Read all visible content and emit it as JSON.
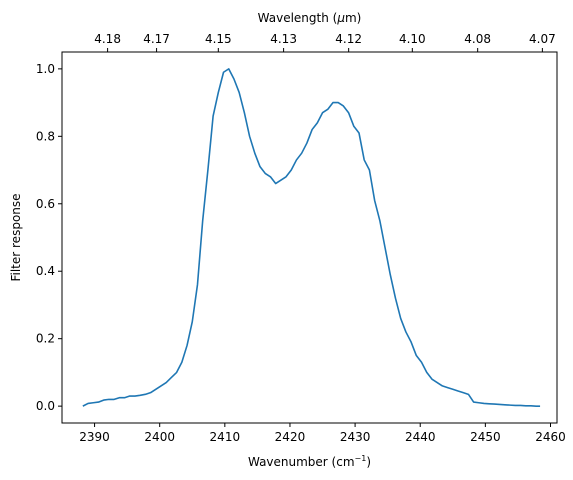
{
  "chart_data": {
    "type": "line",
    "xlabel": "Wavenumber (cm",
    "xlabel_sup": "−1",
    "xlabel_end": ")",
    "ylabel": "Filter response",
    "top_xlabel": "Wavelength (",
    "top_xlabel_mu": "μ",
    "top_xlabel_end": "m)",
    "xlim": [
      2385,
      2461
    ],
    "ylim": [
      -0.05,
      1.05
    ],
    "grid": false,
    "line_color": "#1f77b4",
    "x_ticks": [
      2390,
      2400,
      2410,
      2420,
      2430,
      2440,
      2450,
      2460
    ],
    "y_ticks": [
      {
        "value": 0.0,
        "label": "0.0"
      },
      {
        "value": 0.2,
        "label": "0.2"
      },
      {
        "value": 0.4,
        "label": "0.4"
      },
      {
        "value": 0.6,
        "label": "0.6"
      },
      {
        "value": 0.8,
        "label": "0.8"
      },
      {
        "value": 1.0,
        "label": "1.0"
      }
    ],
    "top_ticks": [
      {
        "label": "4.18",
        "wavelength": 4.1806
      },
      {
        "label": "4.17",
        "wavelength": 4.1675
      },
      {
        "label": "4.15",
        "wavelength": 4.1511
      },
      {
        "label": "4.13",
        "wavelength": 4.1339
      },
      {
        "label": "4.12",
        "wavelength": 4.1169
      },
      {
        "label": "4.10",
        "wavelength": 4.1004
      },
      {
        "label": "4.08",
        "wavelength": 4.0836
      },
      {
        "label": "4.07",
        "wavelength": 4.0671
      }
    ],
    "series": [
      {
        "x": [
          2388.2,
          2389.0,
          2389.8,
          2390.6,
          2391.4,
          2392.2,
          2393.0,
          2393.8,
          2394.6,
          2395.4,
          2396.2,
          2397.0,
          2397.8,
          2398.6,
          2399.4,
          2400.2,
          2401.0,
          2401.8,
          2402.6,
          2403.4,
          2404.2,
          2405.0,
          2405.8,
          2406.6,
          2407.4,
          2408.2,
          2409.0,
          2409.8,
          2410.6,
          2411.4,
          2412.2,
          2413.0,
          2413.8,
          2414.6,
          2415.4,
          2416.2,
          2417.0,
          2417.8,
          2418.6,
          2419.4,
          2420.2,
          2421.0,
          2421.8,
          2422.6,
          2423.4,
          2424.2,
          2425.0,
          2425.8,
          2426.6,
          2427.4,
          2428.2,
          2429.0,
          2429.8,
          2430.6,
          2431.4,
          2432.2,
          2433.0,
          2433.8,
          2434.6,
          2435.4,
          2436.2,
          2437.0,
          2437.8,
          2438.6,
          2439.4,
          2440.2,
          2441.0,
          2441.8,
          2442.6,
          2443.4,
          2444.2,
          2445.0,
          2445.8,
          2446.6,
          2447.4,
          2448.2,
          2449.0,
          2449.8,
          2450.6,
          2451.4,
          2452.2,
          2453.0,
          2453.8,
          2454.6,
          2455.4,
          2456.2,
          2457.0,
          2457.8,
          2458.4
        ],
        "y": [
          0.0,
          0.008,
          0.01,
          0.012,
          0.018,
          0.02,
          0.02,
          0.025,
          0.025,
          0.03,
          0.03,
          0.032,
          0.035,
          0.04,
          0.05,
          0.06,
          0.07,
          0.085,
          0.1,
          0.13,
          0.18,
          0.25,
          0.36,
          0.55,
          0.7,
          0.86,
          0.93,
          0.99,
          1.0,
          0.97,
          0.93,
          0.87,
          0.8,
          0.75,
          0.71,
          0.69,
          0.68,
          0.66,
          0.67,
          0.68,
          0.7,
          0.73,
          0.75,
          0.78,
          0.82,
          0.84,
          0.87,
          0.88,
          0.9,
          0.9,
          0.89,
          0.87,
          0.83,
          0.81,
          0.73,
          0.7,
          0.61,
          0.55,
          0.47,
          0.39,
          0.32,
          0.26,
          0.22,
          0.19,
          0.15,
          0.13,
          0.1,
          0.08,
          0.07,
          0.06,
          0.055,
          0.05,
          0.045,
          0.04,
          0.035,
          0.012,
          0.01,
          0.008,
          0.007,
          0.006,
          0.005,
          0.004,
          0.003,
          0.002,
          0.002,
          0.001,
          0.001,
          0.0,
          0.0
        ]
      }
    ]
  }
}
